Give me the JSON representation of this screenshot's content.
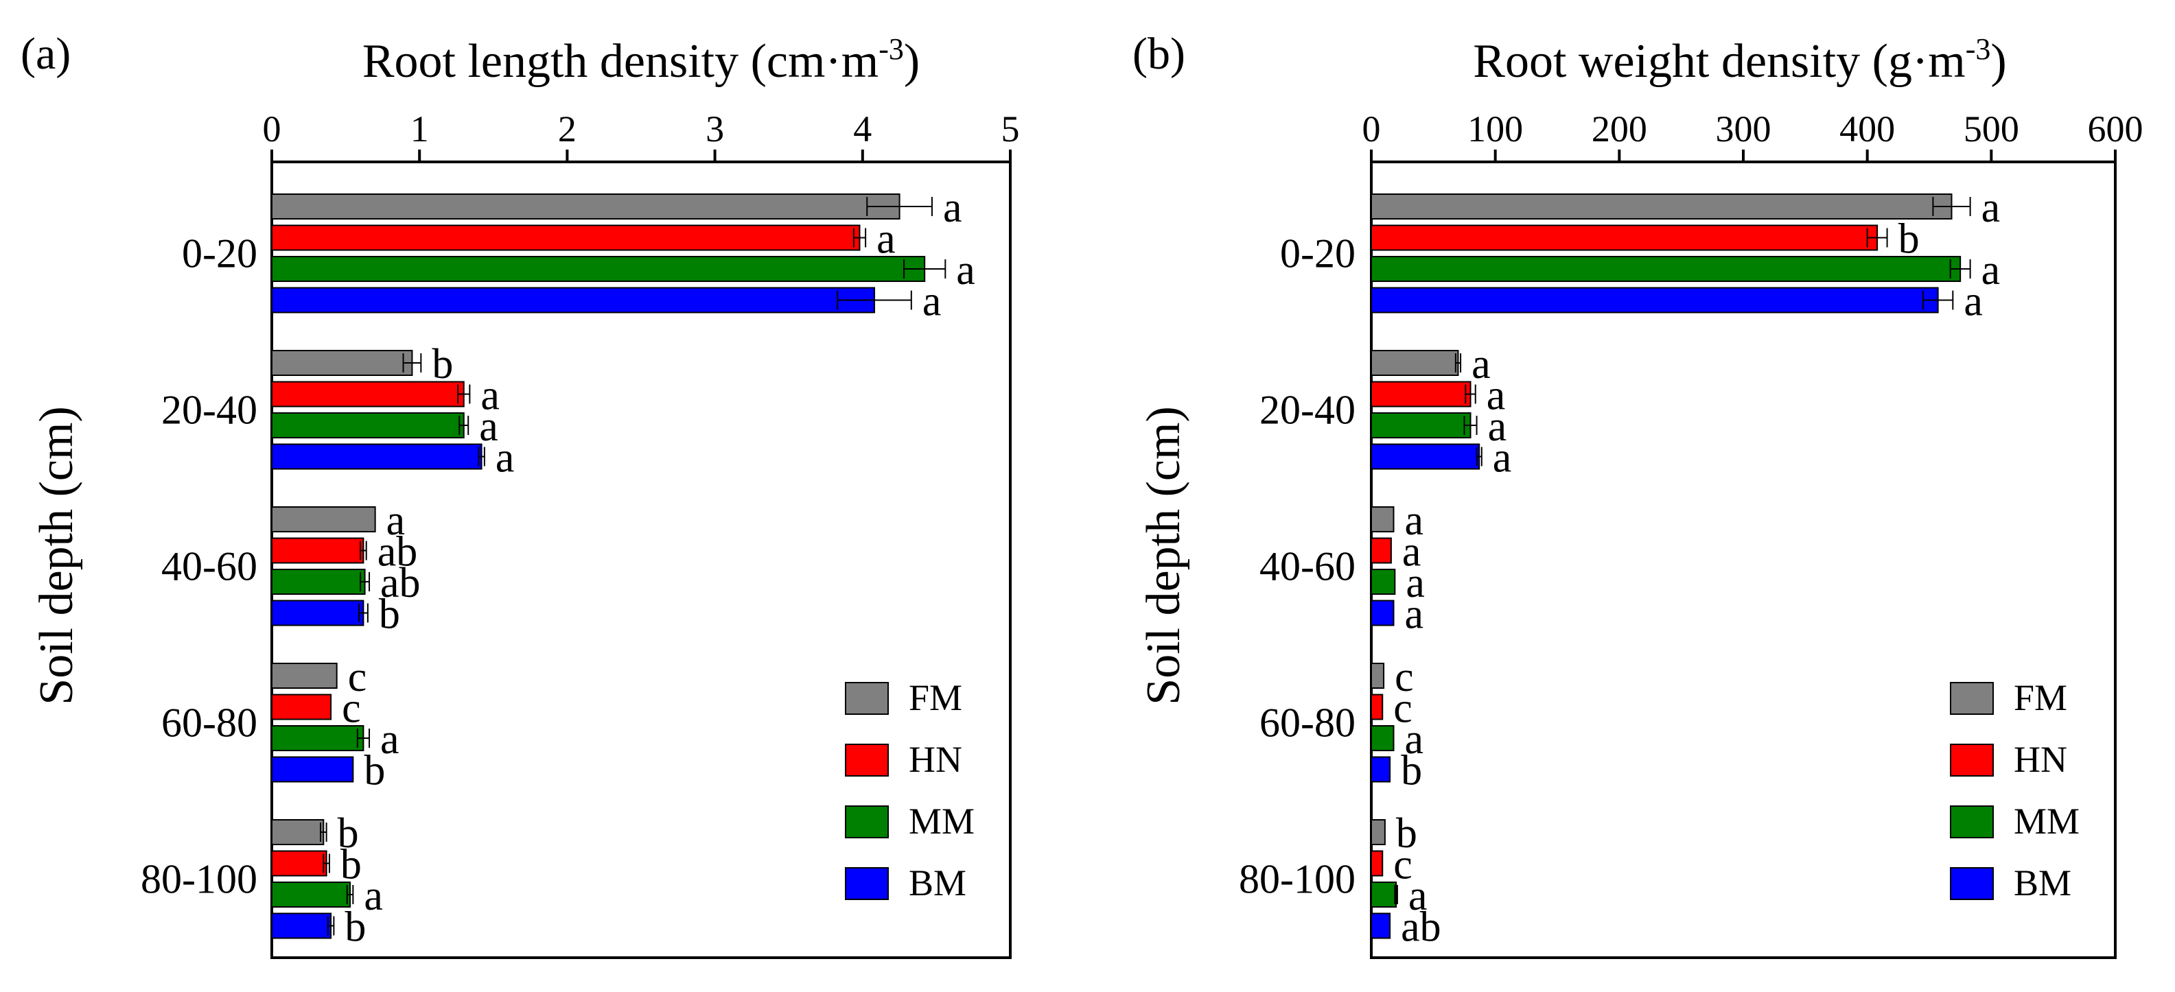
{
  "chart_data": [
    {
      "type": "bar",
      "orientation": "horizontal",
      "panel_label": "(a)",
      "title_main": "Root length density (cm·m",
      "title_sup": "-3",
      "title_close": ")",
      "ylabel": "Soil depth (cm)",
      "xlim": [
        0,
        5
      ],
      "xticks": [
        "0",
        "1",
        "2",
        "3",
        "4",
        "5"
      ],
      "categories": [
        "0-20",
        "20-40",
        "40-60",
        "60-80",
        "80-100"
      ],
      "series": [
        {
          "name": "FM",
          "color": "#808080",
          "values": [
            4.25,
            0.95,
            0.7,
            0.44,
            0.35
          ],
          "errors": [
            0.22,
            0.06,
            0.0,
            0.0,
            0.02
          ],
          "letters": [
            "a",
            "b",
            "a",
            "c",
            "b"
          ]
        },
        {
          "name": "HN",
          "color": "#ff0000",
          "values": [
            3.98,
            1.3,
            0.62,
            0.4,
            0.37
          ],
          "errors": [
            0.04,
            0.04,
            0.02,
            0.0,
            0.02
          ],
          "letters": [
            "a",
            "a",
            "ab",
            "c",
            "b"
          ]
        },
        {
          "name": "MM",
          "color": "#008000",
          "values": [
            4.42,
            1.3,
            0.63,
            0.62,
            0.53
          ],
          "errors": [
            0.14,
            0.03,
            0.03,
            0.04,
            0.02
          ],
          "letters": [
            "a",
            "a",
            "ab",
            "a",
            "a"
          ]
        },
        {
          "name": "BM",
          "color": "#0000ff",
          "values": [
            4.08,
            1.42,
            0.62,
            0.55,
            0.4
          ],
          "errors": [
            0.25,
            0.02,
            0.03,
            0.0,
            0.02
          ],
          "letters": [
            "a",
            "a",
            "b",
            "b",
            "b"
          ]
        }
      ],
      "legend_position": "bottom-right"
    },
    {
      "type": "bar",
      "orientation": "horizontal",
      "panel_label": "(b)",
      "title_main": "Root weight density (g·m",
      "title_sup": "-3",
      "title_close": ")",
      "ylabel": "Soil depth (cm)",
      "xlim": [
        0,
        600
      ],
      "xticks": [
        "0",
        "100",
        "200",
        "300",
        "400",
        "500",
        "600"
      ],
      "categories": [
        "0-20",
        "20-40",
        "40-60",
        "60-80",
        "80-100"
      ],
      "series": [
        {
          "name": "FM",
          "color": "#808080",
          "values": [
            468,
            70,
            18,
            10,
            11
          ],
          "errors": [
            15,
            2,
            0,
            0,
            0
          ],
          "letters": [
            "a",
            "a",
            "a",
            "c",
            "b"
          ]
        },
        {
          "name": "HN",
          "color": "#ff0000",
          "values": [
            408,
            80,
            16,
            9,
            9
          ],
          "errors": [
            8,
            4,
            0,
            0,
            0
          ],
          "letters": [
            "b",
            "a",
            "a",
            "c",
            "c"
          ]
        },
        {
          "name": "MM",
          "color": "#008000",
          "values": [
            475,
            80,
            19,
            18,
            20
          ],
          "errors": [
            8,
            5,
            0,
            0,
            1
          ],
          "letters": [
            "a",
            "a",
            "a",
            "a",
            "a"
          ]
        },
        {
          "name": "BM",
          "color": "#0000ff",
          "values": [
            457,
            87,
            18,
            15,
            15
          ],
          "errors": [
            12,
            2,
            0,
            0,
            0
          ],
          "letters": [
            "a",
            "a",
            "a",
            "b",
            "ab"
          ]
        }
      ],
      "legend_position": "bottom-right"
    }
  ]
}
